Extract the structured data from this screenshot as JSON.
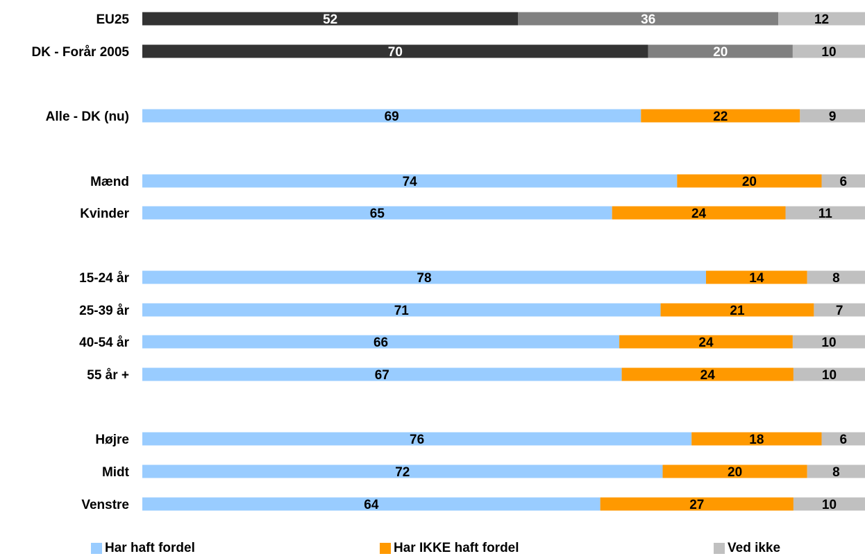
{
  "chart_data": {
    "type": "bar",
    "orientation": "horizontal",
    "stacked": true,
    "grid": false,
    "legend_position": "bottom",
    "categories": [
      "EU25",
      "DK - Forår 2005",
      "Alle - DK (nu)",
      "Mænd",
      "Kvinder",
      "15-24 år",
      "25-39 år",
      "40-54 år",
      "55 år +",
      "Højre",
      "Midt",
      "Venstre"
    ],
    "series": [
      {
        "name": "Har haft fordel",
        "values": [
          52,
          70,
          69,
          74,
          65,
          78,
          71,
          66,
          67,
          76,
          72,
          64
        ]
      },
      {
        "name": "Har IKKE haft fordel",
        "values": [
          36,
          20,
          22,
          20,
          24,
          14,
          21,
          24,
          24,
          18,
          20,
          27
        ]
      },
      {
        "name": "Ved ikke",
        "values": [
          12,
          10,
          9,
          6,
          11,
          8,
          7,
          10,
          10,
          6,
          8,
          10
        ]
      }
    ],
    "colors": {
      "Har haft fordel": "#99ccff",
      "Har IKKE haft fordel": "#ff9900",
      "Ved ikke": "#c0c0c0"
    },
    "reference_colors": [
      "#333333",
      "#808080",
      "#c0c0c0"
    ],
    "label_colors": {
      "reference": "#ffffff",
      "main": "#000000"
    }
  }
}
